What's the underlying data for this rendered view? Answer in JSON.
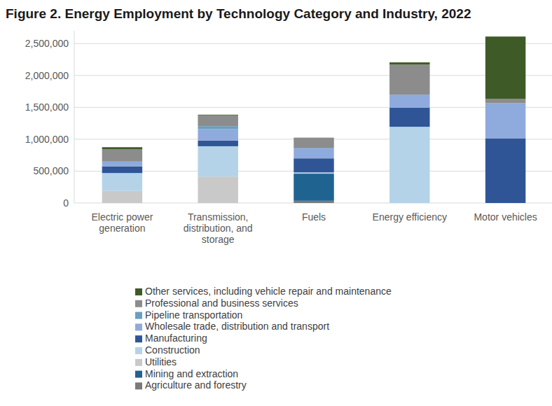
{
  "chart_data": {
    "type": "bar",
    "stacked": true,
    "grid": true,
    "legend": "bottom",
    "title": "Figure 2. Energy Employment by Technology Category and Industry, 2022",
    "categories": [
      "Electric power generation",
      "Transmission, distribution, and storage",
      "Fuels",
      "Energy efficiency",
      "Motor vehicles"
    ],
    "ylim": [
      0,
      2700000
    ],
    "yticks": [
      0,
      {
        "value": 500000,
        "label": "500,000"
      },
      {
        "value": 1000000,
        "label": "1,000,000"
      },
      {
        "value": 1500000,
        "label": "1,500,000"
      },
      {
        "value": 2000000,
        "label": "2,000,000"
      },
      {
        "value": 2500000,
        "label": "2,500,000"
      }
    ],
    "series": [
      {
        "name": "Agriculture and forestry",
        "color": "#7a7a7a",
        "values": [
          0,
          0,
          35000,
          0,
          0
        ]
      },
      {
        "name": "Mining and extraction",
        "color": "#1f6391",
        "values": [
          0,
          0,
          425000,
          0,
          0
        ]
      },
      {
        "name": "Utilities",
        "color": "#c9c9c9",
        "values": [
          190000,
          415000,
          0,
          0,
          0
        ]
      },
      {
        "name": "Construction",
        "color": "#b4d3e8",
        "values": [
          280000,
          475000,
          20000,
          1195000,
          0
        ]
      },
      {
        "name": "Manufacturing",
        "color": "#2f5597",
        "values": [
          105000,
          90000,
          220000,
          300000,
          1015000
        ]
      },
      {
        "name": "Wholesale trade, distribution and transport",
        "color": "#8faadc",
        "values": [
          75000,
          180000,
          155000,
          205000,
          550000
        ]
      },
      {
        "name": "Pipeline transportation",
        "color": "#6a9fbf",
        "values": [
          0,
          45000,
          10000,
          0,
          0
        ]
      },
      {
        "name": "Professional and business services",
        "color": "#8c8c8c",
        "values": [
          195000,
          170000,
          160000,
          470000,
          70000
        ]
      },
      {
        "name": "Other services, including vehicle repair and maintenance",
        "color": "#3d5a27",
        "values": [
          30000,
          10000,
          0,
          35000,
          975000
        ]
      }
    ]
  }
}
